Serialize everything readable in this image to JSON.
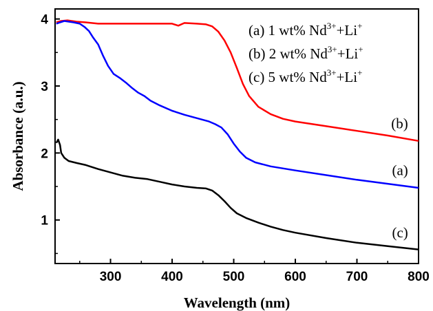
{
  "chart_data": {
    "type": "line",
    "xlabel": "Wavelength (nm)",
    "ylabel": "Absorbance (a.u.)",
    "xlim": [
      210,
      800
    ],
    "ylim": [
      0.35,
      4.15
    ],
    "x_ticks": [
      300,
      400,
      500,
      600,
      700,
      800
    ],
    "y_ticks": [
      1,
      2,
      3,
      4
    ],
    "grid": false,
    "legend_position": "top-right",
    "legend": [
      {
        "prefix": "(a) 1 wt% Nd",
        "sup1": "3+",
        "middle": "+Li",
        "sup2": "+"
      },
      {
        "prefix": "(b) 2 wt% Nd",
        "sup1": "3+",
        "middle": "+Li",
        "sup2": "+"
      },
      {
        "prefix": "(c) 5 wt% Nd",
        "sup1": "3+",
        "middle": "+Li",
        "sup2": "+"
      }
    ],
    "series": [
      {
        "label": "(b)",
        "color": "#ff0000",
        "label_pos": [
          783,
          2.37
        ],
        "points": [
          [
            212,
            3.95
          ],
          [
            220,
            3.97
          ],
          [
            230,
            3.98
          ],
          [
            245,
            3.96
          ],
          [
            260,
            3.95
          ],
          [
            280,
            3.93
          ],
          [
            300,
            3.93
          ],
          [
            350,
            3.93
          ],
          [
            400,
            3.93
          ],
          [
            410,
            3.9
          ],
          [
            420,
            3.94
          ],
          [
            440,
            3.93
          ],
          [
            455,
            3.92
          ],
          [
            465,
            3.89
          ],
          [
            475,
            3.81
          ],
          [
            485,
            3.68
          ],
          [
            495,
            3.5
          ],
          [
            505,
            3.27
          ],
          [
            515,
            3.03
          ],
          [
            525,
            2.85
          ],
          [
            540,
            2.69
          ],
          [
            560,
            2.58
          ],
          [
            580,
            2.51
          ],
          [
            600,
            2.47
          ],
          [
            650,
            2.4
          ],
          [
            700,
            2.33
          ],
          [
            750,
            2.26
          ],
          [
            800,
            2.18
          ]
        ]
      },
      {
        "label": "(a)",
        "color": "#0000ff",
        "label_pos": [
          783,
          1.67
        ],
        "points": [
          [
            212,
            3.93
          ],
          [
            218,
            3.95
          ],
          [
            225,
            3.97
          ],
          [
            240,
            3.95
          ],
          [
            250,
            3.93
          ],
          [
            258,
            3.88
          ],
          [
            265,
            3.82
          ],
          [
            272,
            3.72
          ],
          [
            280,
            3.62
          ],
          [
            288,
            3.45
          ],
          [
            296,
            3.3
          ],
          [
            305,
            3.18
          ],
          [
            315,
            3.12
          ],
          [
            325,
            3.05
          ],
          [
            335,
            2.97
          ],
          [
            345,
            2.9
          ],
          [
            355,
            2.85
          ],
          [
            365,
            2.78
          ],
          [
            380,
            2.71
          ],
          [
            400,
            2.63
          ],
          [
            420,
            2.57
          ],
          [
            440,
            2.52
          ],
          [
            460,
            2.47
          ],
          [
            470,
            2.43
          ],
          [
            480,
            2.38
          ],
          [
            490,
            2.28
          ],
          [
            500,
            2.14
          ],
          [
            510,
            2.02
          ],
          [
            520,
            1.93
          ],
          [
            535,
            1.86
          ],
          [
            560,
            1.8
          ],
          [
            600,
            1.74
          ],
          [
            650,
            1.67
          ],
          [
            700,
            1.6
          ],
          [
            750,
            1.54
          ],
          [
            800,
            1.48
          ]
        ]
      },
      {
        "label": "(c)",
        "color": "#000000",
        "label_pos": [
          783,
          0.74
        ],
        "points": [
          [
            212,
            2.15
          ],
          [
            215,
            2.2
          ],
          [
            218,
            2.12
          ],
          [
            220,
            2.0
          ],
          [
            225,
            1.93
          ],
          [
            232,
            1.88
          ],
          [
            245,
            1.85
          ],
          [
            260,
            1.82
          ],
          [
            280,
            1.76
          ],
          [
            300,
            1.71
          ],
          [
            320,
            1.66
          ],
          [
            340,
            1.63
          ],
          [
            360,
            1.61
          ],
          [
            380,
            1.57
          ],
          [
            400,
            1.53
          ],
          [
            420,
            1.5
          ],
          [
            440,
            1.48
          ],
          [
            455,
            1.47
          ],
          [
            465,
            1.44
          ],
          [
            475,
            1.37
          ],
          [
            485,
            1.28
          ],
          [
            495,
            1.18
          ],
          [
            505,
            1.1
          ],
          [
            520,
            1.03
          ],
          [
            540,
            0.96
          ],
          [
            560,
            0.9
          ],
          [
            580,
            0.85
          ],
          [
            600,
            0.81
          ],
          [
            650,
            0.73
          ],
          [
            700,
            0.66
          ],
          [
            750,
            0.61
          ],
          [
            800,
            0.56
          ]
        ]
      }
    ]
  }
}
